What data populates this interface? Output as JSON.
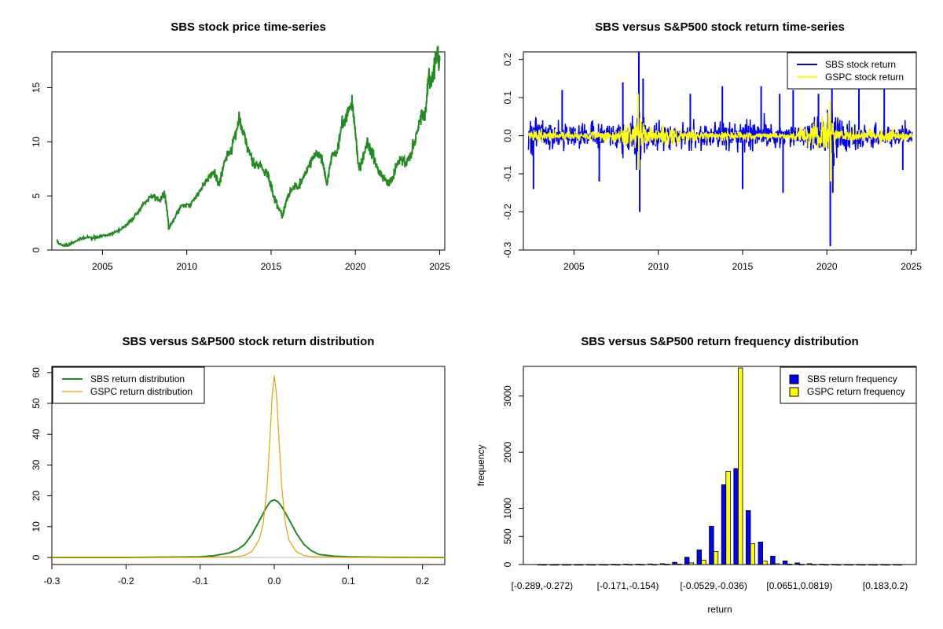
{
  "chart_data": [
    {
      "type": "line",
      "title": "SBS stock price time-series",
      "xlim": [
        2002,
        2025.3
      ],
      "ylim": [
        0,
        18.3
      ],
      "xticks": [
        "2005",
        "2010",
        "2015",
        "2020",
        "2025"
      ],
      "yticks": [
        "0",
        "5",
        "10",
        "15"
      ],
      "series": [
        {
          "color": "#228B22",
          "x": [
            2002.3,
            2002.6,
            2003.0,
            2003.5,
            2004.0,
            2004.5,
            2005.0,
            2005.5,
            2006.0,
            2006.5,
            2007.0,
            2007.5,
            2008.0,
            2008.4,
            2008.7,
            2008.95,
            2009.3,
            2009.7,
            2010.2,
            2010.7,
            2011.2,
            2011.6,
            2011.9,
            2012.3,
            2012.7,
            2013.1,
            2013.3,
            2013.6,
            2014.0,
            2014.4,
            2014.8,
            2015.1,
            2015.4,
            2015.7,
            2015.95,
            2016.3,
            2016.7,
            2017.0,
            2017.3,
            2017.7,
            2018.0,
            2018.3,
            2018.6,
            2018.9,
            2019.2,
            2019.5,
            2019.8,
            2020.0,
            2020.2,
            2020.4,
            2020.7,
            2020.9,
            2021.2,
            2021.5,
            2021.8,
            2022.1,
            2022.4,
            2022.7,
            2023.0,
            2023.3,
            2023.6,
            2023.9,
            2024.1,
            2024.3,
            2024.6,
            2024.8,
            2025.0
          ],
          "y": [
            0.8,
            0.4,
            0.5,
            0.9,
            1.2,
            1.1,
            1.3,
            1.5,
            1.8,
            2.4,
            3.3,
            4.4,
            5.0,
            4.6,
            5.2,
            2.0,
            3.0,
            4.2,
            4.1,
            5.3,
            6.5,
            7.4,
            6.0,
            8.5,
            9.6,
            12.0,
            11.0,
            9.5,
            8.0,
            7.8,
            7.0,
            5.2,
            4.0,
            3.2,
            4.8,
            5.8,
            6.0,
            7.0,
            8.0,
            9.0,
            8.5,
            6.0,
            8.8,
            9.0,
            11.5,
            12.6,
            13.5,
            11.0,
            7.5,
            8.2,
            10.0,
            9.2,
            8.0,
            7.0,
            6.5,
            6.2,
            7.5,
            8.5,
            8.0,
            9.0,
            10.5,
            12.5,
            12.0,
            15.3,
            16.2,
            18.0,
            17.5
          ]
        }
      ]
    },
    {
      "type": "line",
      "title": "SBS versus S&P500 stock return time-series",
      "xlim": [
        2002,
        2025.3
      ],
      "ylim": [
        -0.3,
        0.22
      ],
      "xticks": [
        "2005",
        "2010",
        "2015",
        "2020",
        "2025"
      ],
      "yticks": [
        "-0.3",
        "-0.2",
        "-0.1",
        "0.0",
        "0.1",
        "0.2"
      ],
      "legend_position": "top-right",
      "series": [
        {
          "name": "SBS stock return",
          "color": "#0000FF",
          "volatility": [
            [
              2002.3,
              0.045
            ],
            [
              2003.5,
              0.035
            ],
            [
              2005.0,
              0.028
            ],
            [
              2007.5,
              0.03
            ],
            [
              2008.7,
              0.06
            ],
            [
              2009.5,
              0.035
            ],
            [
              2011.5,
              0.028
            ],
            [
              2013.5,
              0.03
            ],
            [
              2015.5,
              0.04
            ],
            [
              2017.0,
              0.028
            ],
            [
              2019.0,
              0.026
            ],
            [
              2020.2,
              0.08
            ],
            [
              2021.0,
              0.035
            ],
            [
              2023.0,
              0.025
            ],
            [
              2025.0,
              0.025
            ]
          ],
          "spikes": [
            [
              2002.6,
              -0.14
            ],
            [
              2004.3,
              0.12
            ],
            [
              2006.5,
              -0.12
            ],
            [
              2007.9,
              0.14
            ],
            [
              2008.85,
              0.22
            ],
            [
              2008.9,
              -0.2
            ],
            [
              2009.1,
              0.15
            ],
            [
              2011.9,
              0.11
            ],
            [
              2013.8,
              0.13
            ],
            [
              2015.0,
              -0.14
            ],
            [
              2016.1,
              0.13
            ],
            [
              2017.2,
              0.11
            ],
            [
              2017.4,
              -0.15
            ],
            [
              2018.0,
              0.12
            ],
            [
              2019.5,
              0.11
            ],
            [
              2020.2,
              -0.29
            ],
            [
              2020.3,
              0.17
            ],
            [
              2020.35,
              -0.15
            ],
            [
              2021.9,
              0.13
            ],
            [
              2023.4,
              0.14
            ],
            [
              2024.5,
              -0.09
            ]
          ]
        },
        {
          "name": "GSPC stock return",
          "color": "#FFFF00",
          "volatility": [
            [
              2002.3,
              0.022
            ],
            [
              2003.5,
              0.012
            ],
            [
              2005.0,
              0.008
            ],
            [
              2007.5,
              0.012
            ],
            [
              2008.8,
              0.045
            ],
            [
              2009.5,
              0.02
            ],
            [
              2011.6,
              0.02
            ],
            [
              2012.5,
              0.01
            ],
            [
              2015.6,
              0.012
            ],
            [
              2017.5,
              0.006
            ],
            [
              2018.2,
              0.014
            ],
            [
              2020.2,
              0.05
            ],
            [
              2020.6,
              0.018
            ],
            [
              2022.5,
              0.016
            ],
            [
              2025.0,
              0.01
            ]
          ],
          "spikes": [
            [
              2008.8,
              0.11
            ],
            [
              2008.85,
              -0.09
            ],
            [
              2020.2,
              0.09
            ],
            [
              2020.22,
              -0.12
            ]
          ]
        }
      ]
    },
    {
      "type": "line",
      "title": "SBS versus S&P500 stock return distribution",
      "xlim": [
        -0.3,
        0.23
      ],
      "ylim": [
        0,
        62
      ],
      "xticks": [
        "-0.3",
        "-0.2",
        "-0.1",
        "0.0",
        "0.1",
        "0.2"
      ],
      "yticks": [
        "0",
        "10",
        "20",
        "30",
        "40",
        "50",
        "60"
      ],
      "legend_position": "top-left",
      "series": [
        {
          "name": "SBS return distribution",
          "color": "#228B22",
          "x": [
            -0.3,
            -0.2,
            -0.15,
            -0.1,
            -0.08,
            -0.06,
            -0.05,
            -0.04,
            -0.03,
            -0.02,
            -0.01,
            -0.005,
            0.0,
            0.005,
            0.01,
            0.02,
            0.03,
            0.04,
            0.05,
            0.06,
            0.08,
            0.1,
            0.15,
            0.23
          ],
          "y": [
            0,
            0,
            0.1,
            0.2,
            0.6,
            1.5,
            2.5,
            4.2,
            7.5,
            12.0,
            16.5,
            18.2,
            18.7,
            18.1,
            16.5,
            12.3,
            7.8,
            4.2,
            2.2,
            1.0,
            0.4,
            0.2,
            0.05,
            0
          ]
        },
        {
          "name": "GSPC return distribution",
          "color": "#E8A000",
          "x": [
            -0.3,
            -0.1,
            -0.05,
            -0.04,
            -0.03,
            -0.02,
            -0.015,
            -0.01,
            -0.006,
            -0.003,
            0.0,
            0.003,
            0.006,
            0.01,
            0.015,
            0.02,
            0.03,
            0.04,
            0.05,
            0.1,
            0.23
          ],
          "y": [
            0,
            0,
            0.3,
            0.7,
            2.0,
            6.0,
            11.0,
            22.0,
            38.0,
            52.0,
            59.0,
            53.0,
            40.0,
            23.0,
            11.0,
            5.5,
            1.8,
            0.6,
            0.3,
            0,
            0
          ]
        }
      ]
    },
    {
      "type": "bar",
      "title": "SBS versus S&P500 return frequency distribution",
      "xlabel": "return",
      "ylabel": "frequency",
      "ylim": [
        0,
        3500
      ],
      "yticks": [
        "0",
        "500",
        "1000",
        "2000",
        "3000"
      ],
      "xtick_labels": [
        "[-0.289,-0.272)",
        "[-0.171,-0.154)",
        "[-0.0529,-0.036)",
        "[0.0651,0.0819)",
        "[0.183,0.2)"
      ],
      "legend_position": "top-right",
      "series": [
        {
          "name": "SBS return frequency",
          "color": "#0000FF",
          "values": [
            1,
            0,
            0,
            0,
            1,
            2,
            3,
            8,
            6,
            10,
            16,
            40,
            130,
            260,
            680,
            1420,
            1710,
            960,
            400,
            150,
            65,
            30,
            15,
            6,
            3,
            2,
            1,
            2,
            1,
            1
          ]
        },
        {
          "name": "GSPC return frequency",
          "color": "#FFFF00",
          "values": [
            0,
            0,
            0,
            0,
            0,
            0,
            0,
            1,
            1,
            2,
            4,
            8,
            30,
            80,
            230,
            1660,
            3500,
            370,
            60,
            15,
            6,
            3,
            1,
            0,
            0,
            0,
            0,
            0,
            0,
            0
          ]
        }
      ]
    }
  ]
}
